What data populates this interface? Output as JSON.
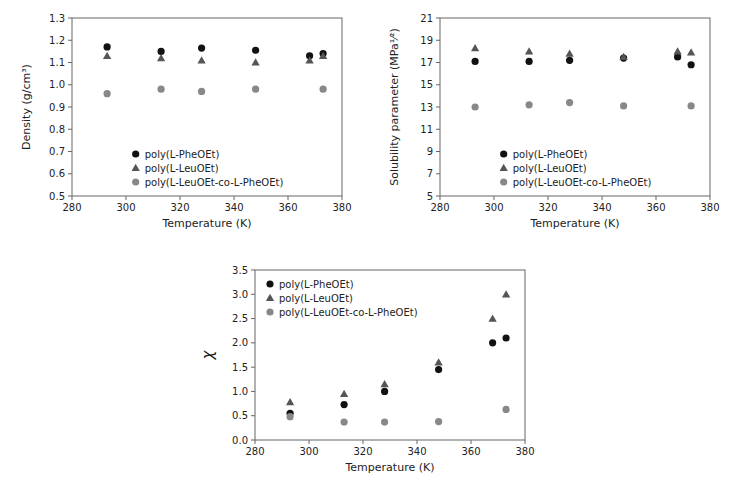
{
  "chart_data": [
    {
      "type": "scatter",
      "x_label": "Temperature (K)",
      "y_label": "Density (g/cm³)",
      "x": [
        293,
        313,
        328,
        348,
        368,
        373
      ],
      "series": [
        {
          "name": "poly(L-PheOEt)",
          "color": "#111111",
          "marker": "circle",
          "values": [
            1.17,
            1.15,
            1.165,
            1.155,
            1.13,
            1.14
          ]
        },
        {
          "name": "poly(L-LeuOEt)",
          "color": "#555555",
          "marker": "triangle",
          "values": [
            1.13,
            1.12,
            1.11,
            1.1,
            1.11,
            1.13
          ]
        },
        {
          "name": "poly(L-LeuOEt-co-L-PheOEt)",
          "color": "#888888",
          "marker": "circle",
          "values": [
            0.96,
            0.98,
            0.97,
            0.98,
            null,
            0.98
          ]
        }
      ],
      "xlim": [
        280,
        380
      ],
      "ylim": [
        0.5,
        1.3
      ],
      "xticks": [
        280,
        300,
        320,
        340,
        360,
        380
      ],
      "yticks": [
        0.5,
        0.6,
        0.7,
        0.8,
        0.9,
        {
          "value": 1.0,
          "label": "1.0"
        },
        1.1,
        1.2,
        1.3
      ],
      "legend": "lower-center"
    },
    {
      "type": "scatter",
      "x_label": "Temperature (K)",
      "y_label": "Solubility parameter (MPa¹⁄²)",
      "x": [
        293,
        313,
        328,
        348,
        368,
        373
      ],
      "series": [
        {
          "name": "poly(L-PheOEt)",
          "color": "#111111",
          "marker": "circle",
          "values": [
            17.1,
            17.1,
            17.2,
            17.4,
            17.5,
            16.8
          ]
        },
        {
          "name": "poly(L-LeuOEt)",
          "color": "#555555",
          "marker": "triangle",
          "values": [
            18.3,
            18.0,
            17.8,
            17.5,
            18.0,
            17.9
          ]
        },
        {
          "name": "poly(L-LeuOEt-co-L-PheOEt)",
          "color": "#888888",
          "marker": "circle",
          "values": [
            13.0,
            13.2,
            13.4,
            13.1,
            null,
            13.1
          ]
        }
      ],
      "xlim": [
        280,
        380
      ],
      "ylim": [
        5,
        21
      ],
      "xticks": [
        280,
        300,
        320,
        340,
        360,
        380
      ],
      "yticks": [
        5,
        7,
        9,
        11,
        13,
        15,
        17,
        19,
        21
      ],
      "legend": "lower-center"
    },
    {
      "type": "scatter",
      "x_label": "Temperature (K)",
      "y_label": "χ",
      "x": [
        293,
        313,
        328,
        348,
        368,
        373
      ],
      "series": [
        {
          "name": "poly(L-PheOEt)",
          "color": "#111111",
          "marker": "circle",
          "values": [
            0.55,
            0.73,
            1.0,
            1.45,
            2.0,
            2.1
          ]
        },
        {
          "name": "poly(L-LeuOEt)",
          "color": "#555555",
          "marker": "triangle",
          "values": [
            0.78,
            0.95,
            1.15,
            1.6,
            2.5,
            3.0
          ]
        },
        {
          "name": "poly(L-LeuOEt-co-L-PheOEt)",
          "color": "#888888",
          "marker": "circle",
          "values": [
            0.48,
            0.37,
            0.37,
            0.38,
            null,
            0.63
          ]
        }
      ],
      "xlim": [
        280,
        380
      ],
      "ylim": [
        0,
        3.5
      ],
      "xticks": [
        280,
        300,
        320,
        340,
        360,
        380
      ],
      "yticks": [
        {
          "value": 0,
          "label": "0.0"
        },
        0.5,
        {
          "value": 1.0,
          "label": "1.0"
        },
        1.5,
        {
          "value": 2.0,
          "label": "2.0"
        },
        2.5,
        {
          "value": 3.0,
          "label": "3.0"
        },
        3.5
      ],
      "legend": "upper-left"
    }
  ]
}
